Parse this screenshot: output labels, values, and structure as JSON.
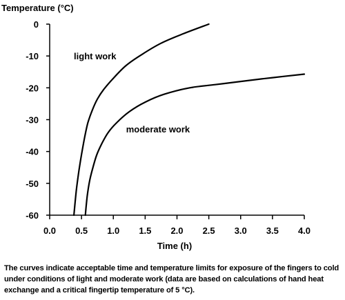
{
  "chart_data": {
    "type": "line",
    "ylabel": "Temperature (°C)",
    "xlabel": "Time (h)",
    "xlim": [
      0.0,
      4.0
    ],
    "ylim": [
      -60,
      0
    ],
    "x_ticks": [
      "0.0",
      "0.5",
      "1.0",
      "1.5",
      "2.0",
      "2.5",
      "3.0",
      "3.5",
      "4.0"
    ],
    "x_tick_values": [
      0.0,
      0.5,
      1.0,
      1.5,
      2.0,
      2.5,
      3.0,
      3.5,
      4.0
    ],
    "y_ticks": [
      "0",
      "-10",
      "-20",
      "-30",
      "-40",
      "-50",
      "-60"
    ],
    "y_tick_values": [
      0,
      -10,
      -20,
      -30,
      -40,
      -50,
      -60
    ],
    "grid": false,
    "series": [
      {
        "name": "light work",
        "x": [
          0.38,
          0.42,
          0.46,
          0.5,
          0.55,
          0.6,
          0.67,
          0.75,
          0.85,
          1.0,
          1.2,
          1.45,
          1.75,
          2.1,
          2.5
        ],
        "y": [
          -60,
          -52,
          -46,
          -41,
          -35.5,
          -31,
          -27,
          -23.5,
          -20.5,
          -17,
          -13,
          -9.5,
          -6,
          -3,
          0
        ]
      },
      {
        "name": "moderate work",
        "x": [
          0.56,
          0.59,
          0.63,
          0.68,
          0.74,
          0.82,
          0.92,
          1.05,
          1.25,
          1.5,
          1.8,
          2.2,
          2.6,
          3.0,
          3.5,
          4.0
        ],
        "y": [
          -60,
          -54,
          -49,
          -45,
          -41,
          -37.5,
          -34,
          -31,
          -27.5,
          -24.5,
          -22,
          -20,
          -19,
          -18,
          -16.8,
          -15.7
        ]
      }
    ],
    "annotations": [
      {
        "text": "light work",
        "x": 0.38,
        "y": -11
      },
      {
        "text": "moderate work",
        "x": 1.2,
        "y": -34
      }
    ]
  },
  "caption": "The curves indicate acceptable time and temperature limits for exposure of the fingers to cold under conditions of light and moderate work (data are based on calculations of hand heat exchange and a critical fingertip temperature of 5 °C)."
}
